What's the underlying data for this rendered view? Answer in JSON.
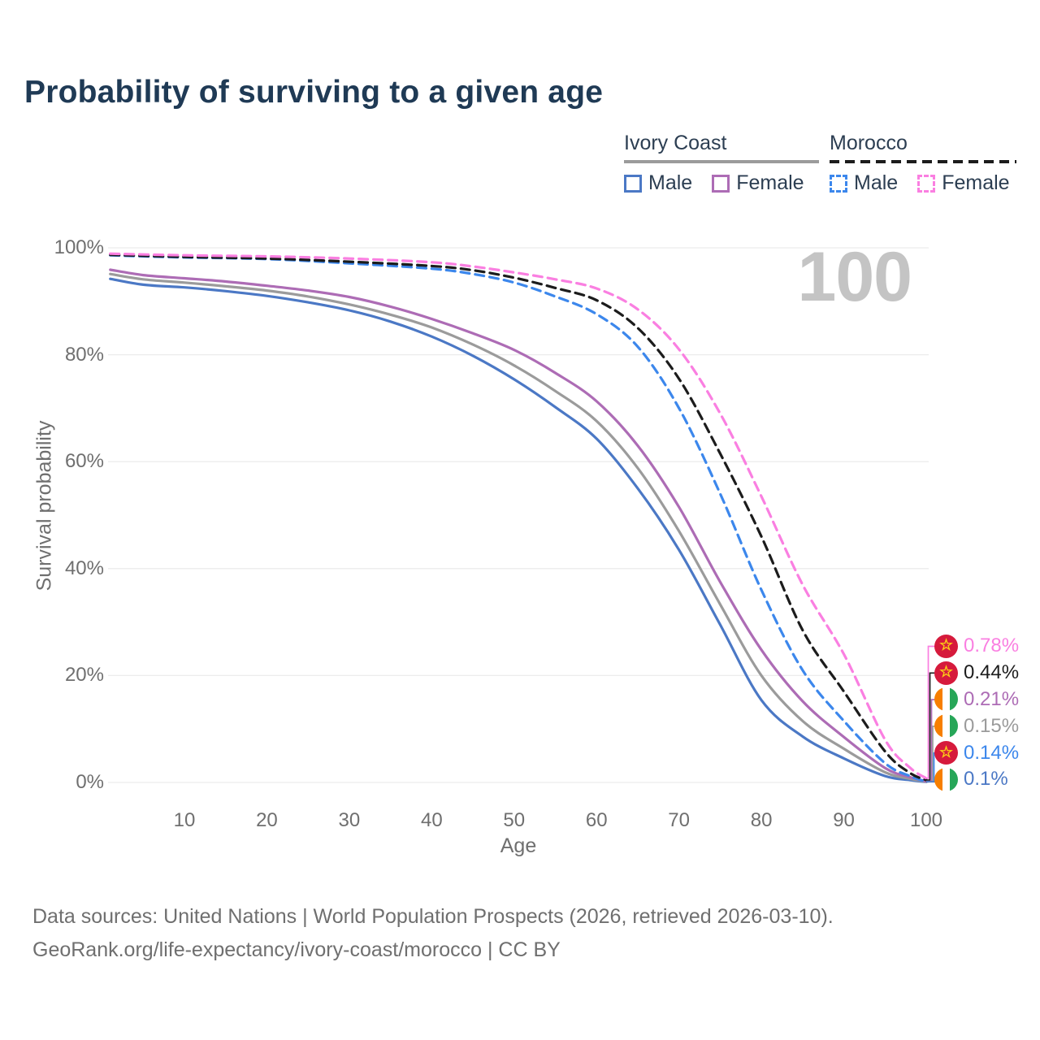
{
  "title": "Probability of surviving to a given age",
  "watermark": "100",
  "legend": {
    "groups": [
      {
        "label": "Ivory Coast",
        "style": "solid",
        "items": [
          {
            "label": "Male"
          },
          {
            "label": "Female"
          }
        ]
      },
      {
        "label": "Morocco",
        "style": "dashed",
        "items": [
          {
            "label": "Male"
          },
          {
            "label": "Female"
          }
        ]
      }
    ]
  },
  "icons": {
    "morocco_star": "☆"
  },
  "footer": {
    "line1": "Data sources: United Nations | World Population Prospects (2026, retrieved 2026-03-10).",
    "line2": "GeoRank.org/life-expectancy/ivory-coast/morocco | CC BY"
  },
  "chart_data": {
    "type": "line",
    "title": "Probability of surviving to a given age",
    "xlabel": "Age",
    "ylabel": "Survival probability",
    "xlim": [
      1,
      100
    ],
    "ylim": [
      0,
      100
    ],
    "grid": "horizontal",
    "x_axis": {
      "ticks": [
        10,
        20,
        30,
        40,
        50,
        60,
        70,
        80,
        90,
        100
      ]
    },
    "y_axis": {
      "ticks": [
        0,
        20,
        40,
        60,
        80,
        100
      ],
      "tick_labels": [
        "0%",
        "20%",
        "40%",
        "60%",
        "80%",
        "100%"
      ]
    },
    "legend_position": "top-right",
    "series": [
      {
        "name": "Morocco Female",
        "country": "Morocco",
        "sex": "Female",
        "style": "dashed",
        "color": "#fa7fe1",
        "flag": "morocco",
        "end_label": "0.78%",
        "points": [
          [
            1,
            98.9
          ],
          [
            10,
            98.6
          ],
          [
            20,
            98.4
          ],
          [
            30,
            98.0
          ],
          [
            40,
            97.3
          ],
          [
            45,
            96.5
          ],
          [
            50,
            95.4
          ],
          [
            55,
            94.1
          ],
          [
            60,
            92.4
          ],
          [
            65,
            88.5
          ],
          [
            70,
            81.0
          ],
          [
            75,
            69.0
          ],
          [
            80,
            53.5
          ],
          [
            85,
            37.0
          ],
          [
            90,
            24.0
          ],
          [
            95,
            8.0
          ],
          [
            98,
            2.8
          ],
          [
            100,
            0.78
          ]
        ]
      },
      {
        "name": "Morocco",
        "country": "Morocco",
        "sex": "Both",
        "style": "dashed",
        "color": "#1c1c1c",
        "flag": "morocco",
        "end_label": "0.44%",
        "points": [
          [
            1,
            98.7
          ],
          [
            10,
            98.3
          ],
          [
            20,
            98.0
          ],
          [
            30,
            97.4
          ],
          [
            40,
            96.6
          ],
          [
            45,
            95.8
          ],
          [
            50,
            94.4
          ],
          [
            55,
            92.5
          ],
          [
            60,
            90.2
          ],
          [
            65,
            85.0
          ],
          [
            70,
            75.5
          ],
          [
            75,
            61.5
          ],
          [
            80,
            46.0
          ],
          [
            85,
            28.5
          ],
          [
            90,
            17.0
          ],
          [
            95,
            5.8
          ],
          [
            98,
            1.8
          ],
          [
            100,
            0.44
          ]
        ]
      },
      {
        "name": "Ivory Coast Female",
        "country": "Ivory Coast",
        "sex": "Female",
        "style": "solid",
        "color": "#ad6cb5",
        "flag": "ivory-coast",
        "end_label": "0.21%",
        "points": [
          [
            1,
            95.9
          ],
          [
            5,
            94.9
          ],
          [
            10,
            94.3
          ],
          [
            15,
            93.7
          ],
          [
            20,
            92.9
          ],
          [
            25,
            92.0
          ],
          [
            30,
            90.8
          ],
          [
            35,
            89.0
          ],
          [
            40,
            86.7
          ],
          [
            45,
            84.0
          ],
          [
            50,
            80.9
          ],
          [
            55,
            76.6
          ],
          [
            60,
            71.3
          ],
          [
            65,
            63.0
          ],
          [
            70,
            51.5
          ],
          [
            75,
            37.5
          ],
          [
            80,
            24.8
          ],
          [
            85,
            15.2
          ],
          [
            90,
            8.5
          ],
          [
            95,
            2.7
          ],
          [
            98,
            1.0
          ],
          [
            100,
            0.21
          ]
        ]
      },
      {
        "name": "Ivory Coast",
        "country": "Ivory Coast",
        "sex": "Both",
        "style": "solid",
        "color": "#9b9b9b",
        "flag": "ivory-coast",
        "end_label": "0.15%",
        "points": [
          [
            1,
            95.1
          ],
          [
            5,
            94.1
          ],
          [
            10,
            93.5
          ],
          [
            15,
            92.8
          ],
          [
            20,
            92.0
          ],
          [
            25,
            90.9
          ],
          [
            30,
            89.4
          ],
          [
            35,
            87.5
          ],
          [
            40,
            85.1
          ],
          [
            45,
            81.9
          ],
          [
            50,
            78.0
          ],
          [
            55,
            73.2
          ],
          [
            60,
            67.6
          ],
          [
            65,
            58.8
          ],
          [
            70,
            47.0
          ],
          [
            75,
            33.3
          ],
          [
            80,
            20.0
          ],
          [
            85,
            11.5
          ],
          [
            90,
            6.3
          ],
          [
            95,
            1.9
          ],
          [
            98,
            0.7
          ],
          [
            100,
            0.15
          ]
        ]
      },
      {
        "name": "Morocco Male",
        "country": "Morocco",
        "sex": "Male",
        "style": "dashed",
        "color": "#3c87ec",
        "flag": "morocco",
        "end_label": "0.14%",
        "points": [
          [
            1,
            98.6
          ],
          [
            10,
            98.2
          ],
          [
            20,
            97.9
          ],
          [
            30,
            97.1
          ],
          [
            40,
            96.1
          ],
          [
            45,
            95.1
          ],
          [
            50,
            93.5
          ],
          [
            55,
            90.9
          ],
          [
            60,
            87.6
          ],
          [
            65,
            81.5
          ],
          [
            70,
            70.0
          ],
          [
            75,
            54.0
          ],
          [
            80,
            36.0
          ],
          [
            85,
            21.0
          ],
          [
            90,
            11.5
          ],
          [
            95,
            3.6
          ],
          [
            98,
            1.2
          ],
          [
            100,
            0.14
          ]
        ]
      },
      {
        "name": "Ivory Coast Male",
        "country": "Ivory Coast",
        "sex": "Male",
        "style": "solid",
        "color": "#4b78c5",
        "flag": "ivory-coast",
        "end_label": "0.1%",
        "points": [
          [
            1,
            94.2
          ],
          [
            5,
            93.1
          ],
          [
            10,
            92.6
          ],
          [
            15,
            91.9
          ],
          [
            20,
            91.0
          ],
          [
            25,
            89.8
          ],
          [
            30,
            88.3
          ],
          [
            35,
            86.2
          ],
          [
            40,
            83.4
          ],
          [
            45,
            79.8
          ],
          [
            50,
            75.4
          ],
          [
            55,
            70.2
          ],
          [
            60,
            64.3
          ],
          [
            65,
            55.0
          ],
          [
            70,
            43.5
          ],
          [
            75,
            29.5
          ],
          [
            80,
            15.4
          ],
          [
            85,
            8.6
          ],
          [
            90,
            4.5
          ],
          [
            95,
            1.2
          ],
          [
            98,
            0.45
          ],
          [
            100,
            0.1
          ]
        ]
      }
    ]
  }
}
